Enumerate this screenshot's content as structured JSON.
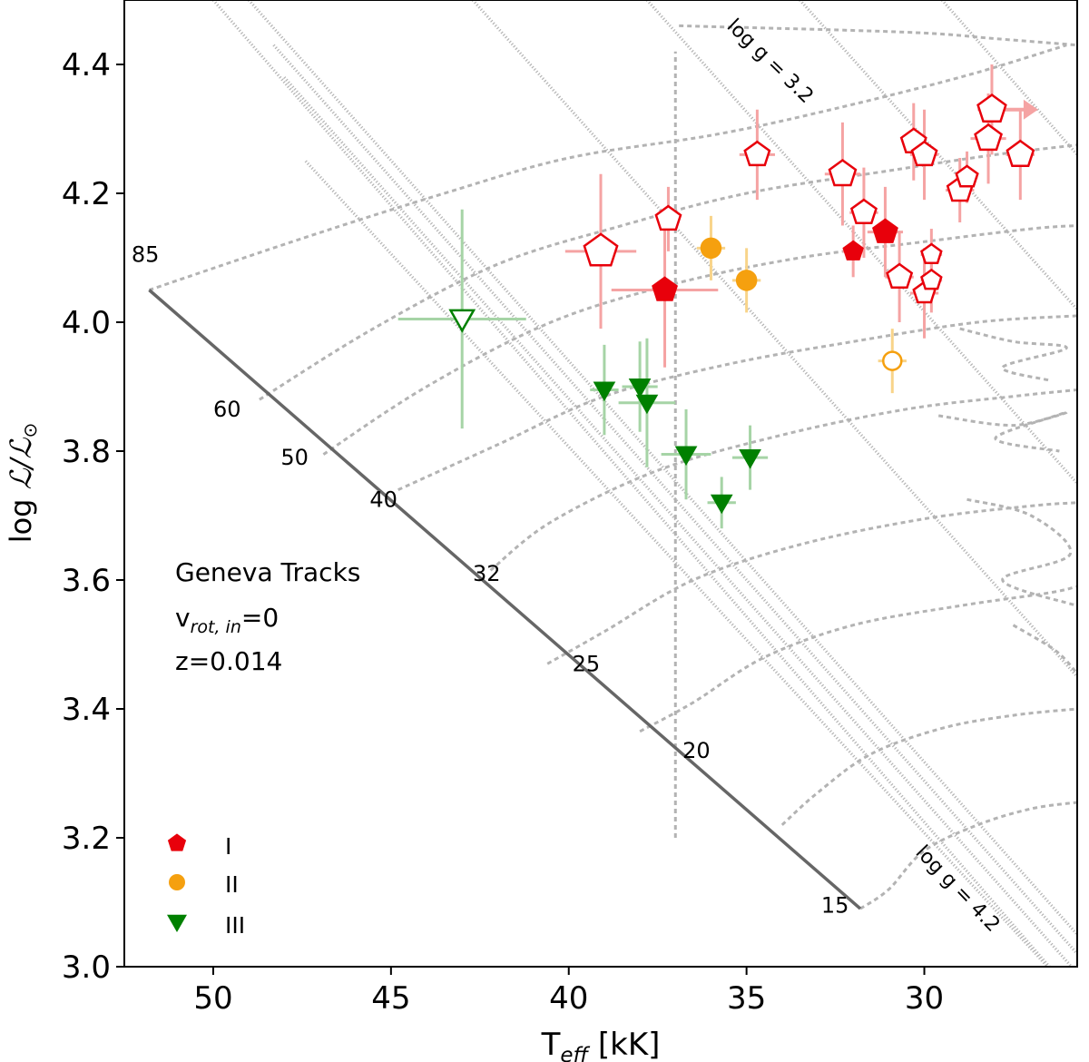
{
  "chart_data": {
    "type": "scatter",
    "xlabel_main": "T",
    "xlabel_sub": "eff",
    "xlabel_unit": " [kK]",
    "ylabel_main": "log ",
    "ylabel_symbol": "ℒ/ℒ",
    "ylabel_sun": "⊙",
    "xlim": [
      52.5,
      25.7
    ],
    "ylim": [
      3.0,
      4.5
    ],
    "x_ticks": [
      50,
      45,
      40,
      35,
      30
    ],
    "y_ticks": [
      3.0,
      3.2,
      3.4,
      3.6,
      3.8,
      4.0,
      4.2,
      4.4
    ],
    "x_tick_labels": [
      "50",
      "45",
      "40",
      "35",
      "30"
    ],
    "y_tick_labels": [
      "3.0",
      "3.2",
      "3.4",
      "3.6",
      "3.8",
      "4.0",
      "4.2",
      "4.4"
    ],
    "annotation": {
      "line1": "Geneva Tracks",
      "line2_main": "v",
      "line2_sub": "rot, in",
      "line2_rest": "=0",
      "line3": "z=0.014"
    },
    "logg_labels": {
      "upper": "log g = 3.2",
      "lower": "log g = 4.2"
    },
    "zams": {
      "points": [
        [
          51.8,
          4.05
        ],
        [
          48.7,
          3.88
        ],
        [
          46.9,
          3.795
        ],
        [
          44.8,
          3.74
        ],
        [
          42.2,
          3.615
        ],
        [
          40.6,
          3.47
        ],
        [
          38.0,
          3.365
        ],
        [
          34.0,
          3.22
        ],
        [
          31.8,
          3.09
        ]
      ],
      "mass_labels": [
        {
          "text": "85",
          "x": 52.3,
          "y": 4.105
        },
        {
          "text": "60",
          "x": 50.0,
          "y": 3.865
        },
        {
          "text": "50",
          "x": 48.1,
          "y": 3.79
        },
        {
          "text": "40",
          "x": 45.6,
          "y": 3.725
        },
        {
          "text": "32",
          "x": 42.7,
          "y": 3.61
        },
        {
          "text": "25",
          "x": 39.9,
          "y": 3.47
        },
        {
          "text": "20",
          "x": 36.8,
          "y": 3.335
        },
        {
          "text": "15",
          "x": 32.9,
          "y": 3.095
        }
      ]
    },
    "tracks": [
      [
        [
          51.8,
          4.05
        ],
        [
          47.5,
          4.13
        ],
        [
          43.5,
          4.2
        ],
        [
          40.0,
          4.255
        ],
        [
          36.0,
          4.29
        ],
        [
          33.0,
          4.325
        ],
        [
          29.0,
          4.38
        ],
        [
          26.0,
          4.43
        ]
      ],
      [
        [
          48.7,
          3.88
        ],
        [
          45.5,
          3.99
        ],
        [
          42.0,
          4.09
        ],
        [
          38.5,
          4.15
        ],
        [
          35.0,
          4.2
        ],
        [
          31.0,
          4.235
        ],
        [
          28.0,
          4.26
        ],
        [
          25.7,
          4.275
        ]
      ],
      [
        [
          46.9,
          3.795
        ],
        [
          44.0,
          3.9
        ],
        [
          40.5,
          4.0
        ],
        [
          37.0,
          4.06
        ],
        [
          33.5,
          4.1
        ],
        [
          30.0,
          4.125
        ],
        [
          27.0,
          4.145
        ],
        [
          25.7,
          4.15
        ]
      ],
      [
        [
          44.8,
          3.74
        ],
        [
          42.0,
          3.81
        ],
        [
          39.0,
          3.885
        ],
        [
          35.5,
          3.935
        ],
        [
          32.0,
          3.97
        ],
        [
          28.5,
          4.0
        ],
        [
          25.7,
          4.01
        ]
      ],
      [
        [
          42.2,
          3.615
        ],
        [
          40.5,
          3.69
        ],
        [
          37.5,
          3.77
        ],
        [
          34.0,
          3.825
        ],
        [
          30.5,
          3.865
        ],
        [
          27.5,
          3.885
        ],
        [
          25.7,
          3.895
        ]
      ],
      [
        [
          40.6,
          3.47
        ],
        [
          39.0,
          3.52
        ],
        [
          36.5,
          3.6
        ],
        [
          33.5,
          3.655
        ],
        [
          30.0,
          3.695
        ],
        [
          27.0,
          3.715
        ],
        [
          25.7,
          3.72
        ]
      ],
      [
        [
          38.0,
          3.365
        ],
        [
          36.5,
          3.41
        ],
        [
          34.5,
          3.48
        ],
        [
          32.0,
          3.53
        ],
        [
          29.0,
          3.56
        ],
        [
          26.5,
          3.58
        ],
        [
          25.7,
          3.59
        ]
      ],
      [
        [
          34.0,
          3.22
        ],
        [
          33.0,
          3.27
        ],
        [
          31.5,
          3.33
        ],
        [
          29.5,
          3.37
        ],
        [
          27.5,
          3.39
        ],
        [
          25.7,
          3.4
        ]
      ],
      [
        [
          31.8,
          3.09
        ],
        [
          31.0,
          3.12
        ],
        [
          30.0,
          3.18
        ],
        [
          28.5,
          3.22
        ],
        [
          27.0,
          3.245
        ],
        [
          25.7,
          3.255
        ]
      ]
    ],
    "hooks": [
      [
        [
          36.9,
          4.46
        ],
        [
          30.5,
          4.45
        ],
        [
          28.0,
          4.44
        ],
        [
          25.7,
          4.43
        ]
      ],
      [
        [
          29.0,
          3.99
        ],
        [
          27.5,
          3.97
        ],
        [
          26.0,
          3.96
        ],
        [
          27.8,
          3.93
        ],
        [
          26.5,
          3.91
        ]
      ],
      [
        [
          29.6,
          3.855
        ],
        [
          27.5,
          3.84
        ],
        [
          26.0,
          3.86
        ],
        [
          28.0,
          3.82
        ],
        [
          26.2,
          3.8
        ]
      ],
      [
        [
          28.8,
          3.725
        ],
        [
          27.0,
          3.7
        ],
        [
          25.9,
          3.64
        ],
        [
          27.8,
          3.6
        ],
        [
          25.7,
          3.56
        ]
      ],
      [
        [
          27.5,
          3.53
        ],
        [
          26.3,
          3.49
        ],
        [
          25.7,
          3.455
        ]
      ]
    ],
    "isochrone_vertical": {
      "x": 37.0,
      "y_min": 3.2,
      "y_max": 4.42
    },
    "logg_lines": [
      [
        [
          50.0,
          4.5
        ],
        [
          25.7,
          2.95
        ]
      ],
      [
        [
          49.0,
          4.5
        ],
        [
          25.7,
          3.05
        ]
      ],
      [
        [
          48.3,
          4.43
        ],
        [
          25.7,
          3.02
        ]
      ],
      [
        [
          48.0,
          4.38
        ],
        [
          25.7,
          2.99
        ]
      ],
      [
        [
          47.4,
          4.25
        ],
        [
          25.7,
          2.95
        ]
      ],
      [
        [
          42.7,
          4.5
        ],
        [
          25.7,
          3.45
        ]
      ],
      [
        [
          37.8,
          4.5
        ],
        [
          25.7,
          3.75
        ]
      ],
      [
        [
          33.5,
          4.5
        ],
        [
          25.7,
          4.02
        ]
      ],
      [
        [
          29.5,
          4.5
        ],
        [
          25.7,
          4.26
        ]
      ]
    ],
    "series": [
      {
        "name": "I",
        "marker": "pentagon",
        "color": "#e8000b",
        "errcolor": "#f5a3a3",
        "points": [
          {
            "x": 39.1,
            "y": 4.11,
            "xerr": 1.0,
            "yerr": 0.12,
            "filled": false,
            "size": 20
          },
          {
            "x": 37.2,
            "y": 4.16,
            "xerr": 0.3,
            "yerr": 0.05,
            "filled": false,
            "size": 15
          },
          {
            "x": 37.3,
            "y": 4.05,
            "xerr": 1.5,
            "yerr": 0.12,
            "filled": true,
            "size": 15
          },
          {
            "x": 34.7,
            "y": 4.26,
            "xerr": 0.5,
            "yerr": 0.07,
            "filled": false,
            "size": 15
          },
          {
            "x": 32.3,
            "y": 4.23,
            "xerr": 0.5,
            "yerr": 0.08,
            "filled": false,
            "size": 16
          },
          {
            "x": 31.7,
            "y": 4.17,
            "xerr": 0.4,
            "yerr": 0.07,
            "filled": false,
            "size": 15
          },
          {
            "x": 32.0,
            "y": 4.11,
            "xerr": 0.3,
            "yerr": 0.04,
            "filled": true,
            "size": 12
          },
          {
            "x": 31.1,
            "y": 4.14,
            "xerr": 0.5,
            "yerr": 0.07,
            "filled": true,
            "size": 15
          },
          {
            "x": 30.7,
            "y": 4.07,
            "xerr": 0.4,
            "yerr": 0.07,
            "filled": false,
            "size": 15
          },
          {
            "x": 30.3,
            "y": 4.28,
            "xerr": 0.3,
            "yerr": 0.06,
            "filled": false,
            "size": 15
          },
          {
            "x": 30.0,
            "y": 4.26,
            "xerr": 0.4,
            "yerr": 0.07,
            "filled": false,
            "size": 15
          },
          {
            "x": 30.0,
            "y": 4.045,
            "xerr": 0.4,
            "yerr": 0.07,
            "filled": false,
            "size": 13
          },
          {
            "x": 29.8,
            "y": 4.105,
            "xerr": 0.3,
            "yerr": 0.04,
            "filled": false,
            "size": 12
          },
          {
            "x": 29.8,
            "y": 4.065,
            "xerr": 0.3,
            "yerr": 0.05,
            "filled": false,
            "size": 12
          },
          {
            "x": 29.0,
            "y": 4.205,
            "xerr": 0.4,
            "yerr": 0.05,
            "filled": false,
            "size": 15
          },
          {
            "x": 28.8,
            "y": 4.225,
            "xerr": 0.3,
            "yerr": 0.04,
            "filled": false,
            "size": 13
          },
          {
            "x": 28.2,
            "y": 4.285,
            "xerr": 0.5,
            "yerr": 0.07,
            "filled": false,
            "size": 16
          },
          {
            "x": 28.1,
            "y": 4.33,
            "xerr": 0.4,
            "yerr": 0.07,
            "filled": false,
            "size": 17
          },
          {
            "x": 27.3,
            "y": 4.26,
            "xerr": 0.4,
            "yerr": 0.07,
            "filled": false,
            "size": 16
          }
        ]
      },
      {
        "name": "II",
        "marker": "circle",
        "color": "#f5a00f",
        "errcolor": "#f8d48a",
        "points": [
          {
            "x": 36.0,
            "y": 4.115,
            "xerr": 0.4,
            "yerr": 0.05,
            "filled": true,
            "size": 11
          },
          {
            "x": 35.0,
            "y": 4.065,
            "xerr": 0.4,
            "yerr": 0.05,
            "filled": true,
            "size": 11
          },
          {
            "x": 30.9,
            "y": 3.94,
            "xerr": 0.4,
            "yerr": 0.05,
            "filled": false,
            "size": 10
          }
        ]
      },
      {
        "name": "III",
        "marker": "triangle_down",
        "color": "#008000",
        "errcolor": "#a6d4a6",
        "points": [
          {
            "x": 43.0,
            "y": 4.005,
            "xerr": 1.8,
            "yerr": 0.17,
            "filled": false,
            "size": 15
          },
          {
            "x": 39.0,
            "y": 3.895,
            "xerr": 0.4,
            "yerr": 0.07,
            "filled": true,
            "size": 13
          },
          {
            "x": 38.0,
            "y": 3.9,
            "xerr": 0.5,
            "yerr": 0.07,
            "filled": true,
            "size": 13
          },
          {
            "x": 37.8,
            "y": 3.875,
            "xerr": 0.8,
            "yerr": 0.1,
            "filled": true,
            "size": 13
          },
          {
            "x": 36.7,
            "y": 3.795,
            "xerr": 0.7,
            "yerr": 0.07,
            "filled": true,
            "size": 13
          },
          {
            "x": 34.9,
            "y": 3.79,
            "xerr": 0.5,
            "yerr": 0.05,
            "filled": true,
            "size": 13
          },
          {
            "x": 35.7,
            "y": 3.72,
            "xerr": 0.4,
            "yerr": 0.04,
            "filled": true,
            "size": 13
          }
        ]
      }
    ],
    "limit_arrow": {
      "x_from": 27.9,
      "x_to": 26.8,
      "y": 4.33
    },
    "legend": {
      "position": "lower-left",
      "entries": [
        {
          "label": "I",
          "marker": "pentagon",
          "color": "#e8000b"
        },
        {
          "label": "II",
          "marker": "circle",
          "color": "#f5a00f"
        },
        {
          "label": "III",
          "marker": "triangle_down",
          "color": "#008000"
        }
      ]
    }
  }
}
